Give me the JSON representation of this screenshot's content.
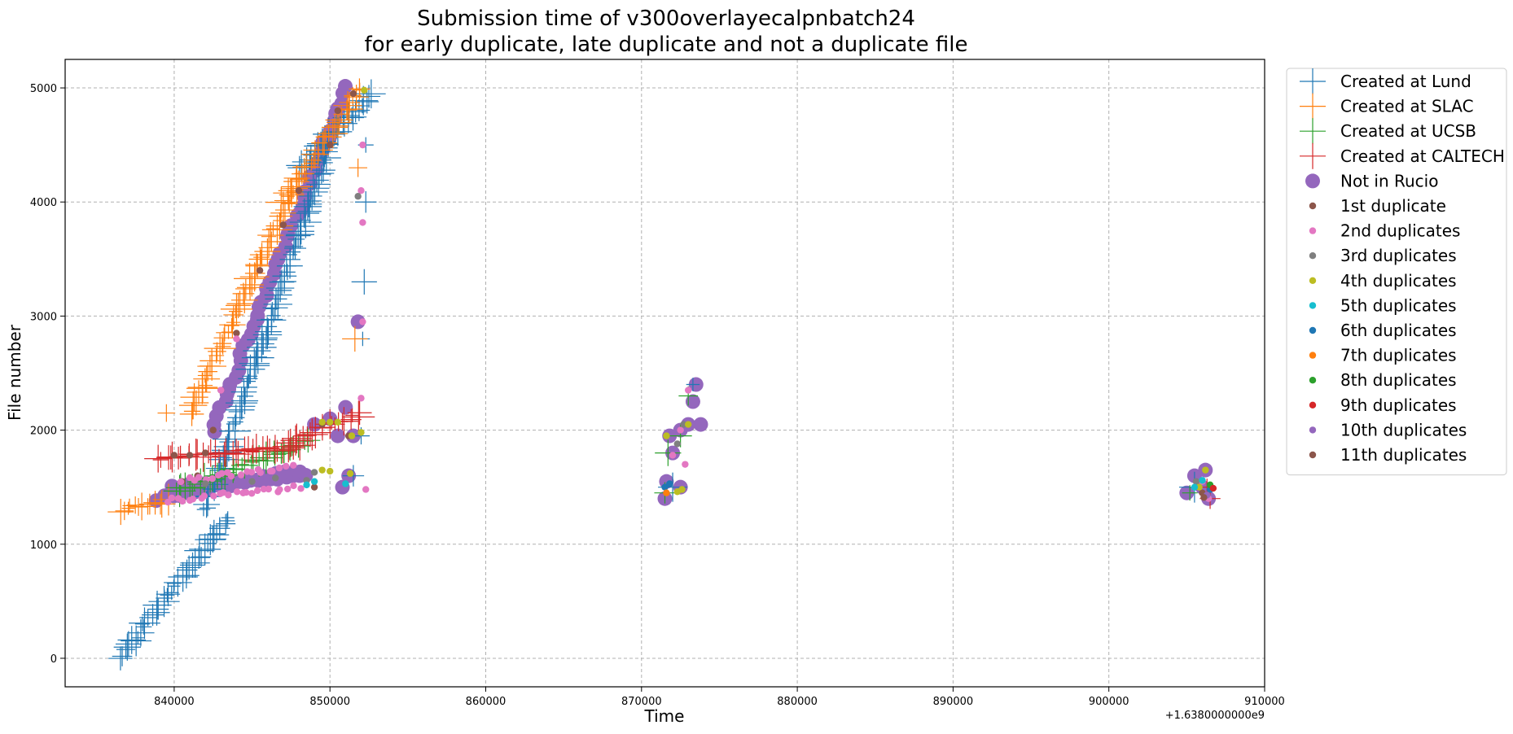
{
  "chart_data": {
    "type": "scatter",
    "title_line1": "Submission time of v300overlayecalpnbatch24",
    "title_line2": "for early duplicate, late duplicate and not a duplicate file",
    "xlabel": "Time",
    "ylabel": "File number",
    "x_offset_label": "+1.6380000000e9",
    "xlim": [
      833000,
      910000
    ],
    "ylim": [
      -250,
      5250
    ],
    "xticks": [
      840000,
      850000,
      860000,
      870000,
      880000,
      890000,
      900000,
      910000
    ],
    "xtick_labels": [
      "840000",
      "850000",
      "860000",
      "870000",
      "880000",
      "890000",
      "900000",
      "910000"
    ],
    "yticks": [
      0,
      1000,
      2000,
      3000,
      4000,
      5000
    ],
    "ytick_labels": [
      "0",
      "1000",
      "2000",
      "3000",
      "4000",
      "5000"
    ],
    "grid": true,
    "legend_placement": "outside-right",
    "series": [
      {
        "name": "Created at Lund",
        "marker": "plus",
        "color": "#1f77b4",
        "segments": [
          [
            [
              836500,
              0
            ],
            [
              843500,
              1250
            ]
          ],
          [
            [
              842000,
              1300
            ],
            [
              850000,
              4500
            ]
          ],
          [
            [
              848000,
              4300
            ],
            [
              852800,
              4950
            ]
          ]
        ],
        "points": [
          [
            851500,
            1600
          ],
          [
            852000,
            1950
          ],
          [
            852100,
            2800
          ],
          [
            852200,
            3300
          ],
          [
            852300,
            4000
          ],
          [
            852300,
            4500
          ],
          [
            872000,
            1500
          ],
          [
            873300,
            2400
          ],
          [
            905500,
            1500
          ]
        ]
      },
      {
        "name": "Created at SLAC",
        "marker": "plus",
        "color": "#ff7f0e",
        "segments": [
          [
            [
              836500,
              1300
            ],
            [
              839500,
              1380
            ]
          ],
          [
            [
              841000,
              2150
            ],
            [
              848000,
              4200
            ]
          ],
          [
            [
              847000,
              4000
            ],
            [
              852000,
              5000
            ]
          ]
        ],
        "points": [
          [
            839500,
            2150
          ],
          [
            851600,
            2800
          ],
          [
            851800,
            4300
          ]
        ]
      },
      {
        "name": "Created at UCSB",
        "marker": "plus",
        "color": "#2ca02c",
        "segments": [
          [
            [
              840000,
              1450
            ],
            [
              848500,
              1900
            ]
          ]
        ],
        "points": [
          [
            871500,
            1450
          ],
          [
            871700,
            1800
          ],
          [
            872500,
            1950
          ],
          [
            873000,
            2300
          ],
          [
            905200,
            1450
          ]
        ]
      },
      {
        "name": "Created at CALTECH",
        "marker": "plus",
        "color": "#d62728",
        "segments": [
          [
            [
              839000,
              1750
            ],
            [
              848000,
              1850
            ]
          ],
          [
            [
              847500,
              1900
            ],
            [
              852000,
              2150
            ]
          ]
        ],
        "points": [
          [
            906500,
            1400
          ],
          [
            906300,
            1500
          ]
        ]
      },
      {
        "name": "Not in Rucio",
        "marker": "big-circle",
        "color": "#9467bd",
        "segments": [
          [
            [
              839000,
              1400
            ],
            [
              848000,
              1650
            ]
          ],
          [
            [
              840000,
              1500
            ],
            [
              848500,
              1600
            ]
          ],
          [
            [
              842500,
              2000
            ],
            [
              851000,
              5000
            ]
          ]
        ],
        "points": [
          [
            849000,
            2050
          ],
          [
            850000,
            2100
          ],
          [
            851000,
            2200
          ],
          [
            850500,
            1950
          ],
          [
            851500,
            1950
          ],
          [
            851200,
            1600
          ],
          [
            850800,
            1500
          ],
          [
            851800,
            2950
          ],
          [
            871500,
            1400
          ],
          [
            871600,
            1550
          ],
          [
            872000,
            1800
          ],
          [
            871800,
            1950
          ],
          [
            872500,
            2000
          ],
          [
            873000,
            2050
          ],
          [
            873300,
            2250
          ],
          [
            873500,
            2400
          ],
          [
            873800,
            2050
          ],
          [
            872500,
            1500
          ],
          [
            905000,
            1450
          ],
          [
            905500,
            1600
          ],
          [
            906000,
            1500
          ],
          [
            906200,
            1650
          ],
          [
            906400,
            1400
          ]
        ]
      },
      {
        "name": "1st duplicate",
        "marker": "dot",
        "color": "#8c564b",
        "points": [
          [
            840000,
            1780
          ],
          [
            841000,
            1780
          ],
          [
            842000,
            1800
          ],
          [
            840500,
            1550
          ],
          [
            841500,
            1600
          ],
          [
            842500,
            2000
          ],
          [
            843000,
            2350
          ],
          [
            844000,
            2850
          ],
          [
            845500,
            3400
          ],
          [
            847000,
            3800
          ],
          [
            848000,
            4100
          ],
          [
            850000,
            4500
          ],
          [
            850500,
            4800
          ],
          [
            851500,
            4950
          ],
          [
            849000,
            1500
          ],
          [
            849500,
            2050
          ],
          [
            851200,
            1950
          ],
          [
            906000,
            1450
          ]
        ]
      },
      {
        "name": "2nd duplicates",
        "marker": "dot",
        "color": "#e377c2",
        "segments": [
          [
            [
              839500,
              1380
            ],
            [
              848000,
              1500
            ]
          ],
          [
            [
              840500,
              1560
            ],
            [
              847500,
              1680
            ]
          ]
        ],
        "points": [
          [
            852100,
            4500
          ],
          [
            852100,
            3820
          ],
          [
            852000,
            4100
          ],
          [
            852000,
            2280
          ],
          [
            852100,
            2950
          ],
          [
            852300,
            1480
          ],
          [
            843000,
            2350
          ],
          [
            844000,
            2800
          ],
          [
            872000,
            1780
          ],
          [
            872800,
            1700
          ],
          [
            872500,
            2000
          ],
          [
            873000,
            2350
          ],
          [
            906000,
            1550
          ],
          [
            906400,
            1400
          ]
        ]
      },
      {
        "name": "3rd duplicates",
        "marker": "dot",
        "color": "#7f7f7f",
        "points": [
          [
            842000,
            1530
          ],
          [
            845000,
            1550
          ],
          [
            846500,
            1580
          ],
          [
            848500,
            1560
          ],
          [
            849000,
            1630
          ],
          [
            851800,
            4050
          ],
          [
            872300,
            1880
          ],
          [
            872700,
            2050
          ],
          [
            905600,
            1550
          ]
        ]
      },
      {
        "name": "4th duplicates",
        "marker": "dot",
        "color": "#bcbd22",
        "points": [
          [
            849500,
            1650
          ],
          [
            850000,
            1640
          ],
          [
            849500,
            2070
          ],
          [
            850000,
            2070
          ],
          [
            850500,
            2070
          ],
          [
            851400,
            1950
          ],
          [
            851300,
            1620
          ],
          [
            852000,
            1980
          ],
          [
            852200,
            4980
          ],
          [
            871600,
            1950
          ],
          [
            872300,
            1460
          ],
          [
            872600,
            1480
          ],
          [
            873000,
            2050
          ],
          [
            905800,
            1500
          ],
          [
            906200,
            1650
          ]
        ]
      },
      {
        "name": "5th duplicates",
        "marker": "dot",
        "color": "#17becf",
        "points": [
          [
            848500,
            1520
          ],
          [
            849000,
            1550
          ],
          [
            851000,
            1530
          ],
          [
            905500,
            1500
          ],
          [
            906000,
            1560
          ]
        ]
      },
      {
        "name": "6th duplicates",
        "marker": "dot",
        "color": "#1f77b4",
        "points": [
          [
            871500,
            1500
          ],
          [
            871800,
            1530
          ],
          [
            906500,
            1480
          ]
        ]
      },
      {
        "name": "7th duplicates",
        "marker": "dot",
        "color": "#ff7f0e",
        "points": [
          [
            871600,
            1450
          ]
        ]
      },
      {
        "name": "8th duplicates",
        "marker": "dot",
        "color": "#2ca02c",
        "points": [
          [
            906500,
            1520
          ]
        ]
      },
      {
        "name": "9th duplicates",
        "marker": "dot",
        "color": "#d62728",
        "points": [
          [
            906700,
            1490
          ]
        ]
      },
      {
        "name": "10th duplicates",
        "marker": "dot",
        "color": "#9467bd",
        "points": [
          [
            906300,
            1430
          ]
        ]
      },
      {
        "name": "11th duplicates",
        "marker": "dot",
        "color": "#8c564b",
        "points": [
          [
            906100,
            1410
          ]
        ]
      }
    ]
  }
}
